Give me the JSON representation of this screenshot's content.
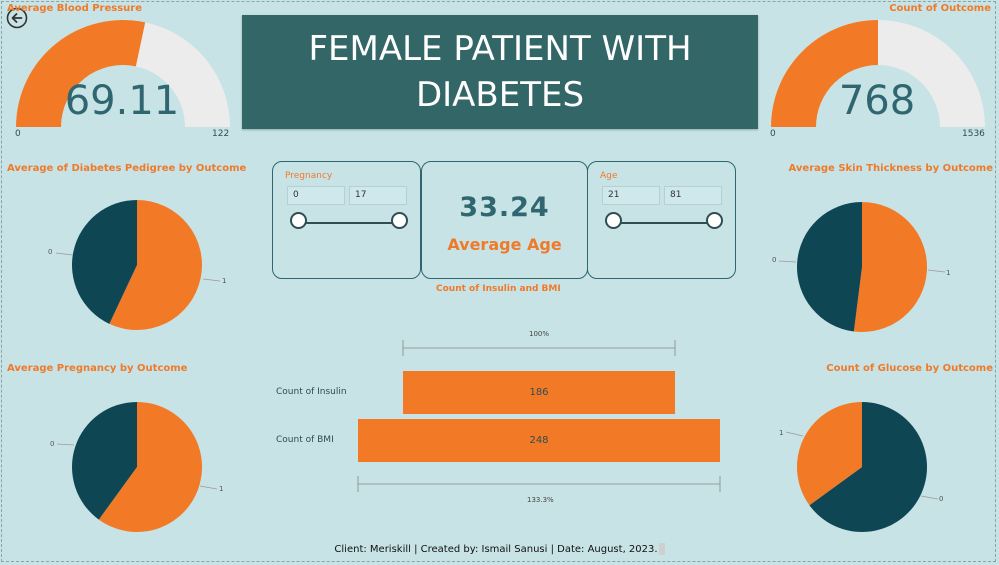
{
  "header": {
    "title": "FEMALE PATIENT WITH DIABETES"
  },
  "gauges": {
    "left": {
      "title": "Average Blood Pressure",
      "value": "69.11",
      "min": "0",
      "max": "122",
      "fraction": 0.5665
    },
    "right": {
      "title": "Count of Outcome",
      "value": "768",
      "min": "0",
      "max": "1536",
      "fraction": 0.5
    }
  },
  "slicers": {
    "pregnancy": {
      "label": "Pregnancy",
      "min": "0",
      "max": "17"
    },
    "age": {
      "label": "Age",
      "min": "21",
      "max": "81"
    }
  },
  "kpi": {
    "value": "33.24",
    "label": "Average Age"
  },
  "pies": {
    "pedigree": {
      "title": "Average of Diabetes Pedigree by Outcome",
      "label0": "0",
      "label1": "1"
    },
    "pregnancy": {
      "title": "Average Pregnancy by Outcome",
      "label0": "0",
      "label1": "1"
    },
    "skin": {
      "title": "Average Skin Thickness by Outcome",
      "label0": "0",
      "label1": "1"
    },
    "glucose": {
      "title": "Count of Glucose by Outcome",
      "label0": "1",
      "label1": "0"
    }
  },
  "funnel": {
    "title": "Count of Insulin and BMI",
    "top_pct": "100%",
    "bottom_pct": "133.3%"
  },
  "footer": "Client: Meriskill | Created by: Ismail Sanusi | Date: August, 2023.",
  "colors": {
    "orange": "#f27a27",
    "dark_teal": "#0f4654",
    "title_bg": "#336666",
    "background": "#c7e3e6"
  },
  "icons": {
    "back": "back-arrow-icon"
  },
  "chart_data": [
    {
      "type": "pie",
      "title": "Average of Diabetes Pedigree by Outcome",
      "categories": [
        "0",
        "1"
      ],
      "values": [
        0.43,
        0.57
      ],
      "colors": [
        "#0f4654",
        "#f27a27"
      ]
    },
    {
      "type": "pie",
      "title": "Average Pregnancy by Outcome",
      "categories": [
        "0",
        "1"
      ],
      "values": [
        0.4,
        0.6
      ],
      "colors": [
        "#0f4654",
        "#f27a27"
      ]
    },
    {
      "type": "pie",
      "title": "Average Skin Thickness by Outcome",
      "categories": [
        "0",
        "1"
      ],
      "values": [
        0.48,
        0.52
      ],
      "colors": [
        "#0f4654",
        "#f27a27"
      ]
    },
    {
      "type": "pie",
      "title": "Count of Glucose by Outcome",
      "categories": [
        "0",
        "1"
      ],
      "values": [
        0.65,
        0.35
      ],
      "colors": [
        "#0f4654",
        "#f27a27"
      ]
    },
    {
      "type": "bar",
      "title": "Count of Insulin and BMI",
      "categories": [
        "Count of Insulin",
        "Count of BMI"
      ],
      "values": [
        186,
        248
      ]
    }
  ]
}
